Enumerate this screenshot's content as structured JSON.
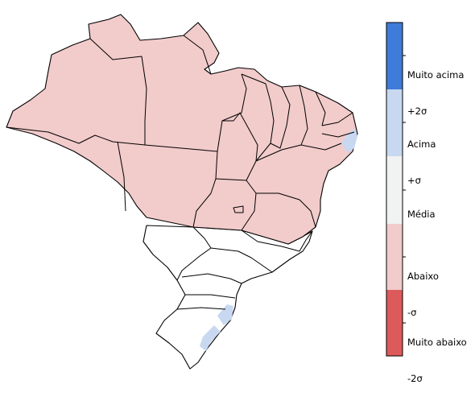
{
  "colors": {
    "muito_acima": "#3f7bd9",
    "acima": "#c8d8f1",
    "media": "#f1f2f2",
    "abaixo": "#f2cbcb",
    "muito_abaixo": "#dd5a5a",
    "neutral": "#ffffff",
    "border": "#000000"
  },
  "legend": {
    "items": [
      {
        "key": "muito_acima",
        "line1": "Muito acima",
        "line2": "+2σ"
      },
      {
        "key": "acima",
        "line1": "Acima",
        "line2": "+σ"
      },
      {
        "key": "media",
        "line1": "Média",
        "line2": ""
      },
      {
        "key": "abaixo",
        "line1": "Abaixo",
        "line2": "-σ"
      },
      {
        "key": "muito_abaixo",
        "line1": "Muito abaixo",
        "line2": "-2σ"
      }
    ]
  },
  "regions": [
    {
      "name": "north-northeast-center",
      "category": "abaixo"
    },
    {
      "name": "southeast-south",
      "category": "neutral"
    },
    {
      "name": "northeast-coast-patch",
      "category": "acima"
    },
    {
      "name": "santa-catarina-coast-patch",
      "category": "acima"
    },
    {
      "name": "rio-grande-do-sul-coast-patch",
      "category": "acima"
    }
  ]
}
